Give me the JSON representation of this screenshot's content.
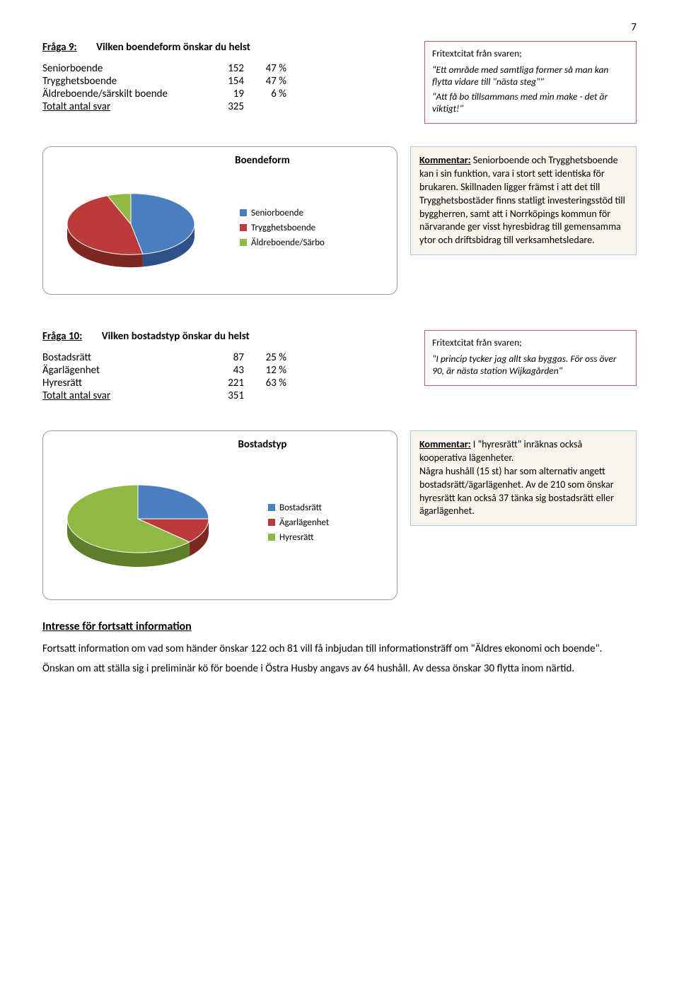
{
  "page_number": "7",
  "q9": {
    "label": "Fråga 9:",
    "title": "Vilken boendeform önskar du helst",
    "rows": [
      {
        "name": "Seniorboende",
        "val": "152",
        "pct": "47 %"
      },
      {
        "name": "Trygghetsboende",
        "val": "154",
        "pct": "47 %"
      },
      {
        "name": "Äldreboende/särskilt boende",
        "val": "19",
        "pct": "6 %"
      }
    ],
    "total_label": "Totalt antal svar",
    "total_val": "325"
  },
  "quote1": {
    "title": "Fritextcitat från svaren;",
    "lines": [
      "\"Ett område med samtliga former så man kan flytta vidare till \"nästa steg\"\"",
      "\"Att få bo tillsammans med min make - det är viktigt!\""
    ]
  },
  "chart1": {
    "type": "pie",
    "title": "Boendeform",
    "slices": [
      {
        "label": "Seniorboende",
        "value": 47,
        "color": "#4a7fbf"
      },
      {
        "label": "Trygghetsboende",
        "value": 47,
        "color": "#bb3b3a"
      },
      {
        "label": "Äldreboende/Särbo",
        "value": 6,
        "color": "#8fb845"
      }
    ],
    "side_accent": {
      "blue": "#2c5186",
      "red": "#7d2722",
      "green": "#5d7e2a"
    },
    "background_color": "#ffffff",
    "border_color": "#999999",
    "radius": 90,
    "tilt": 0.48,
    "depth": 18,
    "start_angle": -90
  },
  "comment1": {
    "label": "Kommentar:",
    "text": " Seniorboende och Trygghetsboende kan i sin funktion, vara i stort sett identiska för brukaren. Skillnaden ligger främst i att det till Trygghetsbostäder finns statligt investeringsstöd till byggherren, samt att i Norrköpings kommun för närvarande ger visst hyresbidrag till gemensamma ytor och driftsbidrag till verksamhetsledare."
  },
  "q10": {
    "label": "Fråga 10:",
    "title": "Vilken bostadstyp önskar du helst",
    "rows": [
      {
        "name": "Bostadsrätt",
        "val": "87",
        "pct": "25 %"
      },
      {
        "name": "Ägarlägenhet",
        "val": "43",
        "pct": "12 %"
      },
      {
        "name": "Hyresrätt",
        "val": "221",
        "pct": "63 %"
      }
    ],
    "total_label": "Totalt antal svar",
    "total_val": "351"
  },
  "quote2": {
    "title": "Fritextcitat från svaren;",
    "lines": [
      "\"I princip tycker jag allt ska byggas. För oss över 90, är nästa station Wijkagården\""
    ]
  },
  "chart2": {
    "type": "pie",
    "title": "Bostadstyp",
    "slices": [
      {
        "label": "Bostadsrätt",
        "value": 25,
        "color": "#4a7fbf"
      },
      {
        "label": "Ägarlägenhet",
        "value": 12,
        "color": "#bb3b3a"
      },
      {
        "label": "Hyresrätt",
        "value": 63,
        "color": "#8fb845"
      }
    ],
    "side_accent": {
      "blue": "#2c5186",
      "red": "#7d2722",
      "green": "#5d7e2a"
    },
    "background_color": "#ffffff",
    "border_color": "#999999",
    "radius": 100,
    "tilt": 0.48,
    "depth": 20,
    "start_angle": -90
  },
  "comment2": {
    "label": "Kommentar:",
    "text": " I \"hyresrätt\" inräknas också kooperativa lägenheter.\nNågra hushåll (15 st) har som alternativ angett bostadsrätt/ägarlägenhet. Av de 210 som önskar hyresrätt kan också 37 tänka sig bostadsrätt eller ägarlägenhet."
  },
  "section": {
    "heading": "Intresse för fortsatt information",
    "p1": "Fortsatt information om vad som händer önskar 122 och 81 vill få inbjudan till informationsträff om \"Äldres ekonomi och boende\".",
    "p2": "Önskan om att ställa sig i preliminär kö för boende i Östra Husby angavs av 64 hushåll. Av dessa önskar 30 flytta inom närtid."
  }
}
